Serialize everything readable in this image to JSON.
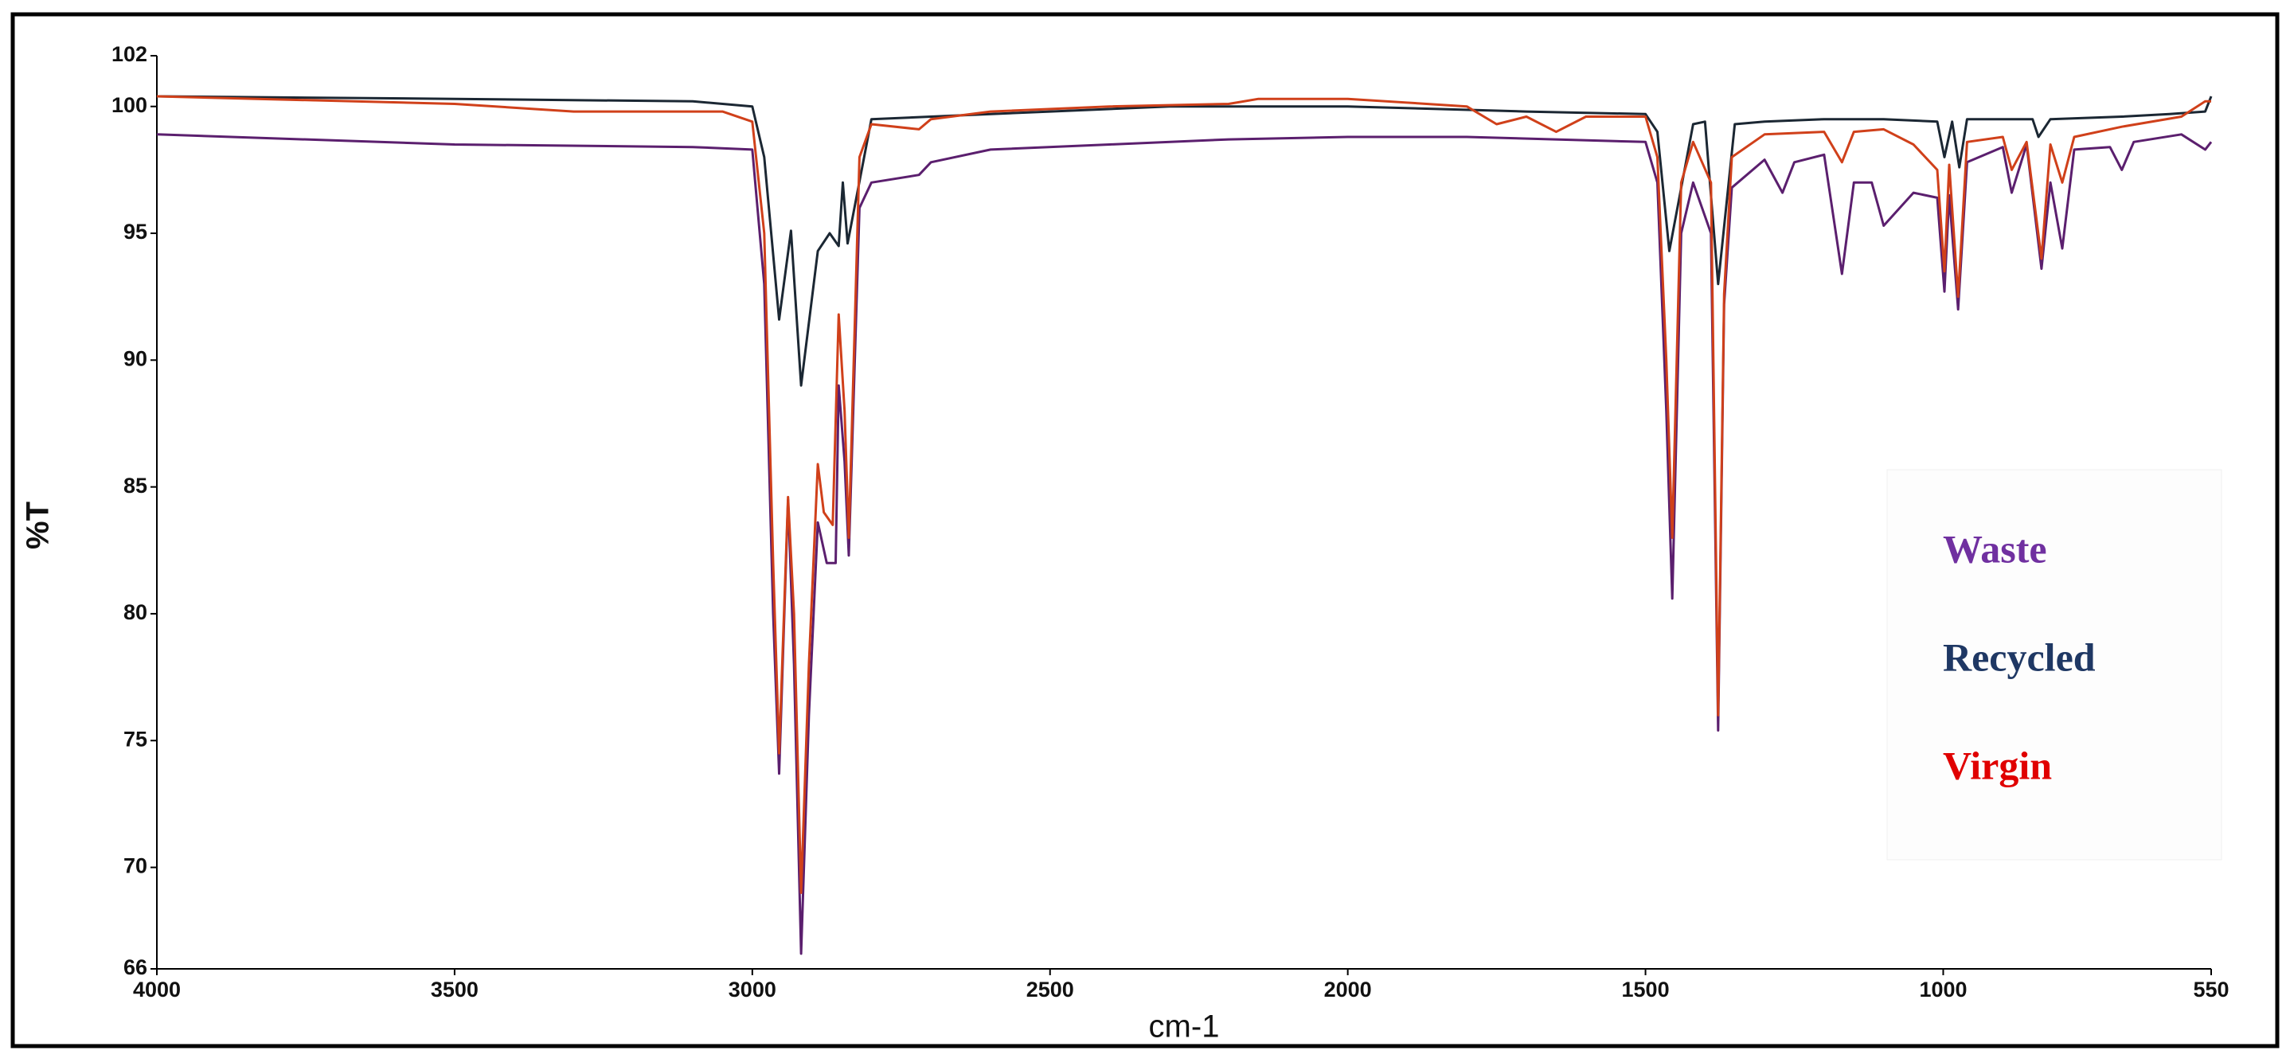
{
  "chart_data": {
    "type": "line",
    "x_label": "cm-1",
    "y_label": "%T",
    "xlim": [
      4000,
      550
    ],
    "xticks": [
      4000,
      3500,
      3000,
      2500,
      2000,
      1500,
      1000,
      550
    ],
    "ylim": [
      66,
      102
    ],
    "yticks": [
      66,
      70,
      75,
      80,
      85,
      90,
      95,
      100,
      102
    ],
    "legend": "right",
    "series": [
      {
        "name": "Waste",
        "color": "#5b1f6e",
        "label_color": "#7030a0",
        "x": [
          4000,
          3500,
          3100,
          3000,
          2980,
          2965,
          2955,
          2940,
          2930,
          2918,
          2905,
          2890,
          2875,
          2860,
          2855,
          2845,
          2838,
          2820,
          2800,
          2720,
          2700,
          2600,
          2400,
          2200,
          2000,
          1800,
          1500,
          1480,
          1465,
          1455,
          1440,
          1420,
          1390,
          1378,
          1368,
          1355,
          1300,
          1270,
          1250,
          1200,
          1170,
          1150,
          1120,
          1100,
          1050,
          1010,
          998,
          990,
          975,
          960,
          900,
          885,
          860,
          835,
          820,
          800,
          780,
          720,
          700,
          680,
          600,
          560,
          550
        ],
        "values": [
          98.9,
          98.5,
          98.4,
          98.3,
          93,
          80,
          73.7,
          84.5,
          78,
          66.6,
          76,
          83.6,
          82,
          82,
          89,
          86,
          82.3,
          96,
          97,
          97.3,
          97.8,
          98.3,
          98.5,
          98.7,
          98.8,
          98.8,
          98.6,
          97,
          88,
          80.6,
          95,
          97,
          95,
          75.4,
          92.2,
          96.8,
          97.9,
          96.6,
          97.8,
          98.1,
          93.4,
          97,
          97,
          95.3,
          96.6,
          96.4,
          92.7,
          96.5,
          92,
          97.8,
          98.4,
          96.6,
          98.5,
          93.6,
          97,
          94.4,
          98.3,
          98.4,
          97.5,
          98.6,
          98.9,
          98.3,
          98.6
        ]
      },
      {
        "name": "Recycled",
        "color": "#1b2733",
        "label_color": "#1f3864",
        "x": [
          4000,
          3500,
          3100,
          3000,
          2980,
          2955,
          2935,
          2918,
          2890,
          2870,
          2855,
          2848,
          2840,
          2800,
          2700,
          2500,
          2300,
          2000,
          1700,
          1500,
          1480,
          1460,
          1420,
          1400,
          1378,
          1350,
          1300,
          1200,
          1100,
          1010,
          998,
          985,
          973,
          960,
          850,
          840,
          820,
          700,
          620,
          560,
          550
        ],
        "values": [
          100.4,
          100.3,
          100.2,
          100,
          98,
          91.6,
          95.1,
          89,
          94.3,
          95,
          94.5,
          97,
          94.6,
          99.5,
          99.6,
          99.8,
          100,
          100,
          99.8,
          99.7,
          99,
          94.3,
          99.3,
          99.4,
          93,
          99.3,
          99.4,
          99.5,
          99.5,
          99.4,
          98,
          99.4,
          97.6,
          99.5,
          99.5,
          98.8,
          99.5,
          99.6,
          99.7,
          99.8,
          100.4
        ]
      },
      {
        "name": "Virgin",
        "color": "#d0401a",
        "label_color": "#e00000",
        "x": [
          4000,
          3500,
          3300,
          3050,
          3000,
          2980,
          2965,
          2955,
          2940,
          2930,
          2918,
          2905,
          2890,
          2880,
          2865,
          2855,
          2845,
          2838,
          2820,
          2800,
          2720,
          2700,
          2600,
          2400,
          2200,
          2150,
          2000,
          1800,
          1750,
          1700,
          1650,
          1600,
          1500,
          1480,
          1465,
          1455,
          1440,
          1420,
          1390,
          1378,
          1368,
          1355,
          1300,
          1200,
          1170,
          1150,
          1100,
          1050,
          1010,
          998,
          990,
          975,
          960,
          900,
          885,
          860,
          835,
          820,
          800,
          780,
          700,
          600,
          560,
          550
        ],
        "values": [
          100.4,
          100.1,
          99.8,
          99.8,
          99.4,
          95,
          82,
          74.5,
          84.6,
          80,
          69,
          78,
          85.9,
          84,
          83.5,
          91.8,
          88,
          83,
          98,
          99.3,
          99.1,
          99.5,
          99.8,
          100,
          100.1,
          100.3,
          100.3,
          100,
          99.3,
          99.6,
          99,
          99.6,
          99.6,
          98,
          90,
          83,
          97,
          98.6,
          97,
          76,
          92.6,
          98,
          98.9,
          99,
          97.8,
          99,
          99.1,
          98.5,
          97.5,
          93.5,
          97.7,
          92.5,
          98.6,
          98.8,
          97.5,
          98.6,
          94,
          98.5,
          97,
          98.8,
          99.2,
          99.6,
          100.2,
          100.2
        ]
      }
    ]
  }
}
